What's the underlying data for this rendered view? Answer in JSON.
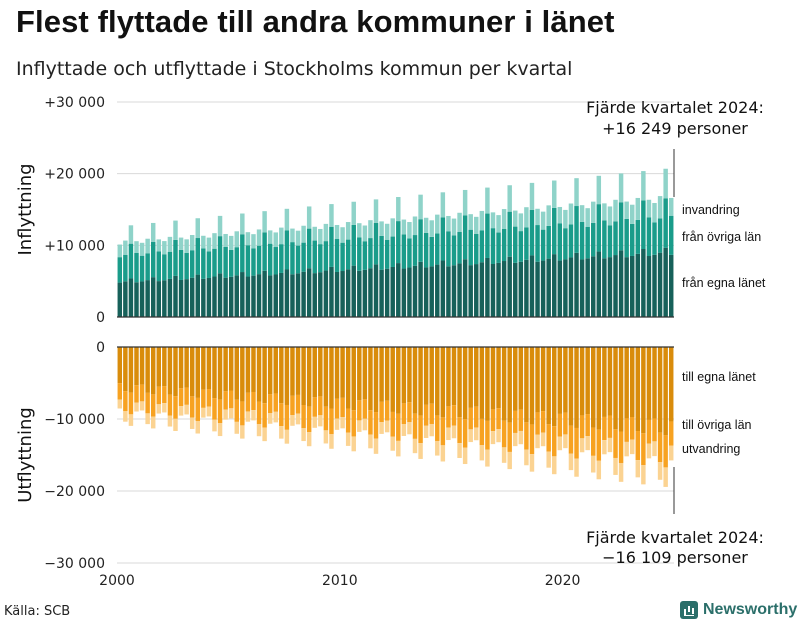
{
  "title": "Flest flyttade till andra kommuner i länet",
  "subtitle": "Inflyttade och utflyttade i Stockholms kommun per kvartal",
  "source": "Källa: SCB",
  "brand": "Newsworthy",
  "colors": {
    "in_egna": "#17615a",
    "in_ovriga": "#1a9c8a",
    "in_invandring": "#8fd3c9",
    "ut_egna": "#d98c0b",
    "ut_ovriga": "#f7a221",
    "ut_utvandring": "#fbd392",
    "grid": "#d9d9d9"
  },
  "chart_data": {
    "type": "bar",
    "stacked": true,
    "frequency": "quarterly",
    "x_range": [
      2000,
      2024
    ],
    "x_ticks": [
      "2000",
      "2010",
      "2020"
    ],
    "panels": [
      {
        "name": "Inflyttning",
        "ylabel": "Inflyttning",
        "ylim": [
          0,
          30000
        ],
        "y_ticks": [
          "0",
          "+10 000",
          "+20 000",
          "+30 000"
        ],
        "series": [
          {
            "name": "från egna länet",
            "start": 4800,
            "end": 8800,
            "seasonal": [
              0,
              200,
              700,
              -100
            ]
          },
          {
            "name": "från övriga län",
            "start": 3900,
            "end": 5200,
            "seasonal": [
              -500,
              -300,
              1300,
              200
            ]
          },
          {
            "name": "invandring",
            "start": 1900,
            "end": 3000,
            "seasonal": [
              -200,
              100,
              900,
              -400
            ]
          }
        ],
        "series_labels": [
          "invandring",
          "från övriga län",
          "från egna länet"
        ],
        "last_label": "Fjärde kvartalet 2024:",
        "last_value": "+16 249 personer"
      },
      {
        "name": "Utflyttning",
        "ylabel": "Utflyttning",
        "ylim": [
          -30000,
          0
        ],
        "y_ticks": [
          "0",
          "−10 000",
          "−20 000",
          "−30 000"
        ],
        "series": [
          {
            "name": "till egna länet",
            "start": -5300,
            "end": -10600,
            "seasonal": [
              400,
              -1100,
              -1300,
              200
            ]
          },
          {
            "name": "till övriga län",
            "start": -2500,
            "end": -3600,
            "seasonal": [
              300,
              -400,
              -700,
              200
            ]
          },
          {
            "name": "utvandring",
            "start": -1300,
            "end": -2200,
            "seasonal": [
              100,
              -200,
              -400,
              100
            ]
          }
        ],
        "series_labels": [
          "till egna länet",
          "till övriga län",
          "utvandring"
        ],
        "last_label": "Fjärde kvartalet 2024:",
        "last_value": "−16 109 personer"
      }
    ]
  }
}
